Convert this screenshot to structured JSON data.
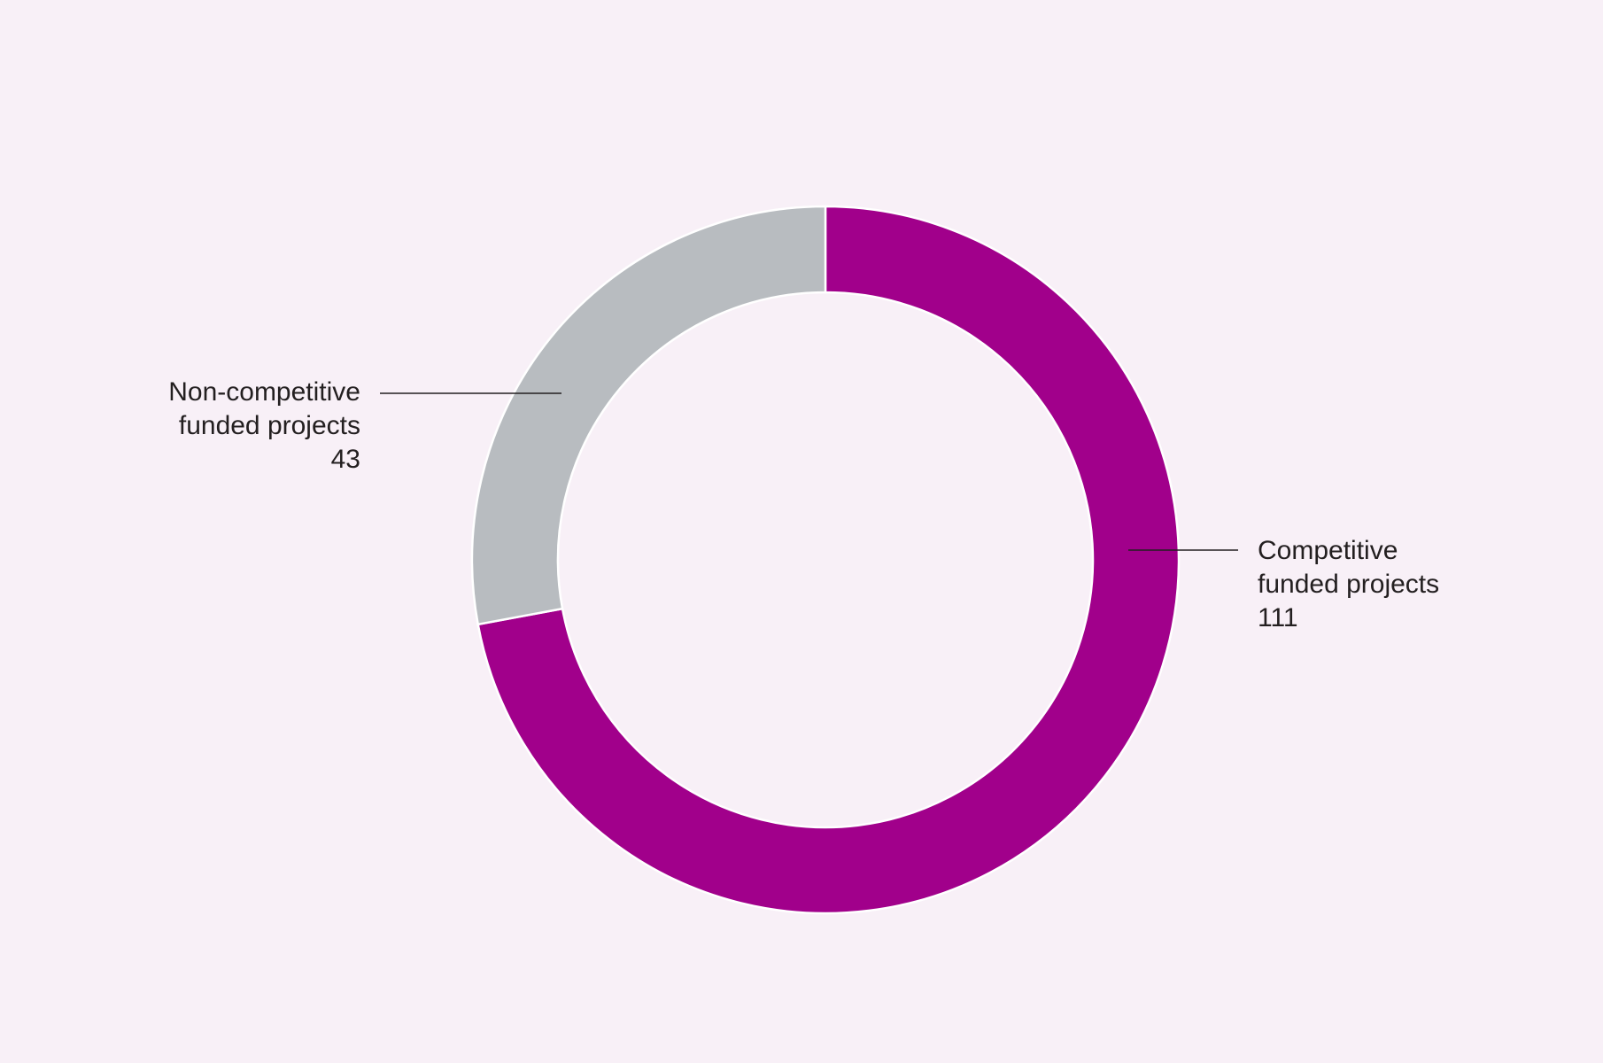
{
  "chart_data": {
    "type": "pie",
    "variant": "donut",
    "title": "",
    "slices": [
      {
        "name_lines": [
          "Competitive",
          "funded projects"
        ],
        "value": 111,
        "value_label": "111",
        "color": "#a1008b",
        "label_side": "right"
      },
      {
        "name_lines": [
          "Non-competitive",
          "funded projects"
        ],
        "value": 43,
        "value_label": "43",
        "color": "#b8bcc0",
        "label_side": "left"
      }
    ],
    "start": "top",
    "direction": "clockwise",
    "legend": "none",
    "background": "#f8f0f7",
    "separator_color": "#ffffff"
  }
}
